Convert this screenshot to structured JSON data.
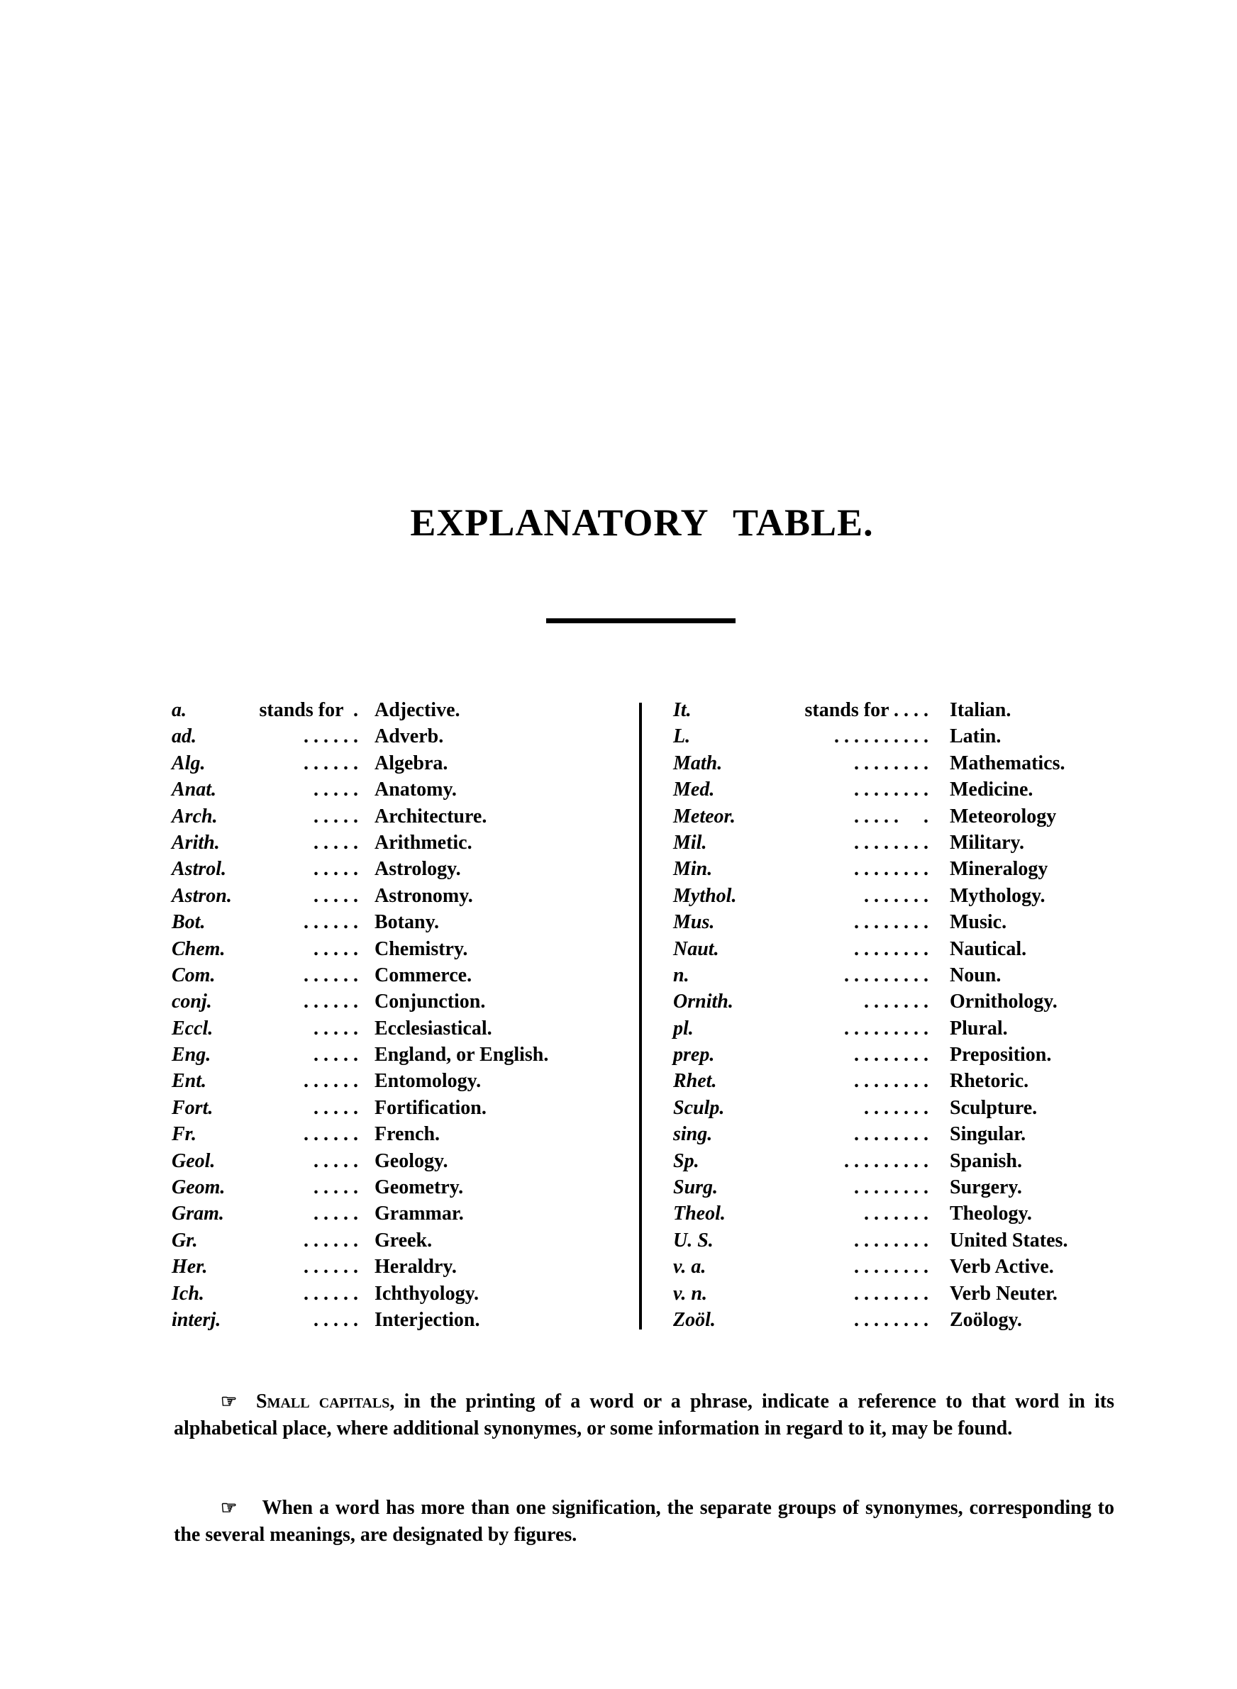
{
  "title": "EXPLANATORY TABLE.",
  "left_entries": [
    {
      "abbr": "a.",
      "lead": "stands for  .",
      "meaning": "Adjective."
    },
    {
      "abbr": "ad.",
      "lead": ". . . . . .",
      "meaning": "Adverb."
    },
    {
      "abbr": "Alg.",
      "lead": ". . . . . .",
      "meaning": "Algebra."
    },
    {
      "abbr": "Anat.",
      "lead": ". . . . .",
      "meaning": "Anatomy."
    },
    {
      "abbr": "Arch.",
      "lead": ". . . . .",
      "meaning": "Architecture."
    },
    {
      "abbr": "Arith.",
      "lead": ". . . . .",
      "meaning": "Arithmetic."
    },
    {
      "abbr": "Astrol.",
      "lead": ". . . . .",
      "meaning": "Astrology."
    },
    {
      "abbr": "Astron.",
      "lead": ". . . . .",
      "meaning": "Astronomy."
    },
    {
      "abbr": "Bot.",
      "lead": ". . . . . .",
      "meaning": "Botany."
    },
    {
      "abbr": "Chem.",
      "lead": ". . . . .",
      "meaning": "Chemistry."
    },
    {
      "abbr": "Com.",
      "lead": ". . . . . .",
      "meaning": "Commerce."
    },
    {
      "abbr": "conj.",
      "lead": ". . . . . .",
      "meaning": "Conjunction."
    },
    {
      "abbr": "Eccl.",
      "lead": ". . . . .",
      "meaning": "Ecclesiastical."
    },
    {
      "abbr": "Eng.",
      "lead": ". . . . .",
      "meaning": "England, or English."
    },
    {
      "abbr": "Ent.",
      "lead": ". . . . . .",
      "meaning": "Entomology."
    },
    {
      "abbr": "Fort.",
      "lead": ". . . . .",
      "meaning": "Fortification."
    },
    {
      "abbr": "Fr.",
      "lead": ". . . . . .",
      "meaning": "French."
    },
    {
      "abbr": "Geol.",
      "lead": ". . . . .",
      "meaning": "Geology."
    },
    {
      "abbr": "Geom.",
      "lead": ". . . . .",
      "meaning": "Geometry."
    },
    {
      "abbr": "Gram.",
      "lead": ". . . . .",
      "meaning": "Grammar."
    },
    {
      "abbr": "Gr.",
      "lead": ". . . . . .",
      "meaning": "Greek."
    },
    {
      "abbr": "Her.",
      "lead": ". . . . . .",
      "meaning": "Heraldry."
    },
    {
      "abbr": "Ich.",
      "lead": ". . . . . .",
      "meaning": "Ichthyology."
    },
    {
      "abbr": "interj.",
      "lead": ". . . . .",
      "meaning": "Interjection."
    }
  ],
  "right_entries": [
    {
      "abbr": "It.",
      "lead": "stands for . . . .",
      "meaning": "Italian."
    },
    {
      "abbr": "L.",
      "lead": ". . . . . . . . . .",
      "meaning": "Latin."
    },
    {
      "abbr": "Math.",
      "lead": ". . . . . . . .",
      "meaning": "Mathematics."
    },
    {
      "abbr": "Med.",
      "lead": ". . . . . . . .",
      "meaning": "Medicine."
    },
    {
      "abbr": "Meteor.",
      "lead": ". . . . .     .",
      "meaning": "Meteorology"
    },
    {
      "abbr": "Mil.",
      "lead": ". . . . . . . .",
      "meaning": "Military."
    },
    {
      "abbr": "Min.",
      "lead": ". . . . . . . .",
      "meaning": "Mineralogy"
    },
    {
      "abbr": "Mythol.",
      "lead": ". . . . . . .",
      "meaning": "Mythology."
    },
    {
      "abbr": "Mus.",
      "lead": ". . . . . . . .",
      "meaning": "Music."
    },
    {
      "abbr": "Naut.",
      "lead": ". . . . . . . .",
      "meaning": "Nautical."
    },
    {
      "abbr": "n.",
      "lead": ". . . . . . . . .",
      "meaning": "Noun."
    },
    {
      "abbr": "Ornith.",
      "lead": ". . . . . . .",
      "meaning": "Ornithology."
    },
    {
      "abbr": "pl.",
      "lead": ". . . . . . . . .",
      "meaning": "Plural."
    },
    {
      "abbr": "prep.",
      "lead": ". . . . . . . .",
      "meaning": "Preposition."
    },
    {
      "abbr": "Rhet.",
      "lead": ". . . . . . . .",
      "meaning": "Rhetoric."
    },
    {
      "abbr": "Sculp.",
      "lead": ". . . . . . .",
      "meaning": "Sculpture."
    },
    {
      "abbr": "sing.",
      "lead": ". . . . . . . .",
      "meaning": "Singular."
    },
    {
      "abbr": "Sp.",
      "lead": ". . . . . . . . .",
      "meaning": "Spanish."
    },
    {
      "abbr": "Surg.",
      "lead": ". . . . . . . .",
      "meaning": "Surgery."
    },
    {
      "abbr": "Theol.",
      "lead": ". . . . . . .",
      "meaning": "Theology."
    },
    {
      "abbr": "U. S.",
      "lead": ". . . . . . . .",
      "meaning": "United States."
    },
    {
      "abbr": "v. a.",
      "lead": ". . . . . . . .",
      "meaning": "Verb Active."
    },
    {
      "abbr": "v. n.",
      "lead": ". . . . . . . .",
      "meaning": "Verb Neuter."
    },
    {
      "abbr": "Zoöl.",
      "lead": ". . . . . . . .",
      "meaning": "Zoölogy."
    }
  ],
  "notes": [
    {
      "icon": "pointing-hand-icon",
      "lead": "Small capitals",
      "text": ", in the printing of a word or a phrase, indicate a reference to that word in its alphabetical place, where additional synonymes, or some information in regard to it, may be found."
    },
    {
      "icon": "pointing-hand-icon",
      "lead": "",
      "text": "When a word has more than one signification, the separate groups of synonymes, corresponding to the several meanings, are designated by figures."
    }
  ]
}
